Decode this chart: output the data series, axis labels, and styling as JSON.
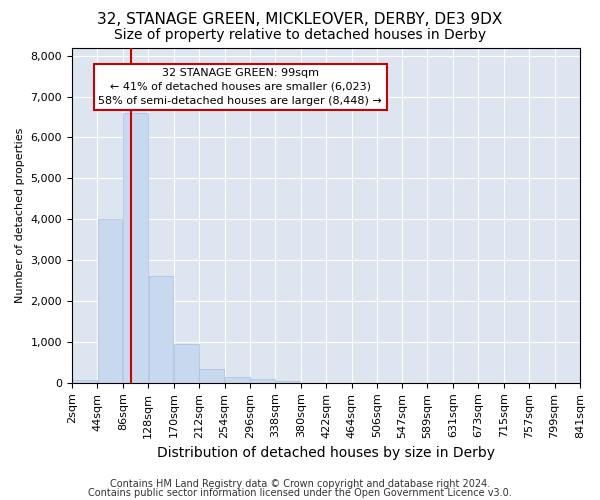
{
  "title1": "32, STANAGE GREEN, MICKLEOVER, DERBY, DE3 9DX",
  "title2": "Size of property relative to detached houses in Derby",
  "xlabel": "Distribution of detached houses by size in Derby",
  "ylabel": "Number of detached properties",
  "footer1": "Contains HM Land Registry data © Crown copyright and database right 2024.",
  "footer2": "Contains public sector information licensed under the Open Government Licence v3.0.",
  "annotation_title": "32 STANAGE GREEN: 99sqm",
  "annotation_line1": "← 41% of detached houses are smaller (6,023)",
  "annotation_line2": "58% of semi-detached houses are larger (8,448) →",
  "bins": [
    2,
    44,
    86,
    128,
    170,
    212,
    254,
    296,
    338,
    380,
    422,
    464,
    506,
    547,
    589,
    631,
    673,
    715,
    757,
    799,
    841
  ],
  "bar_heights": [
    60,
    4000,
    6600,
    2600,
    950,
    330,
    150,
    100,
    50,
    0,
    0,
    0,
    0,
    0,
    0,
    0,
    0,
    0,
    0,
    0
  ],
  "bar_color": "#c8d8ee",
  "bar_edge_color": "#a8c0dc",
  "vline_color": "#cc0000",
  "vline_x": 99,
  "ylim": [
    0,
    8200
  ],
  "yticks": [
    0,
    1000,
    2000,
    3000,
    4000,
    5000,
    6000,
    7000,
    8000
  ],
  "annotation_box_color": "#ffffff",
  "annotation_box_edge": "#cc0000",
  "fig_bg_color": "#ffffff",
  "axes_bg_color": "#dde6f0",
  "grid_color": "#ffffff",
  "title1_fontsize": 11,
  "title2_fontsize": 10,
  "xlabel_fontsize": 10,
  "ylabel_fontsize": 8,
  "tick_fontsize": 8,
  "footer_fontsize": 7,
  "ann_fontsize": 8
}
